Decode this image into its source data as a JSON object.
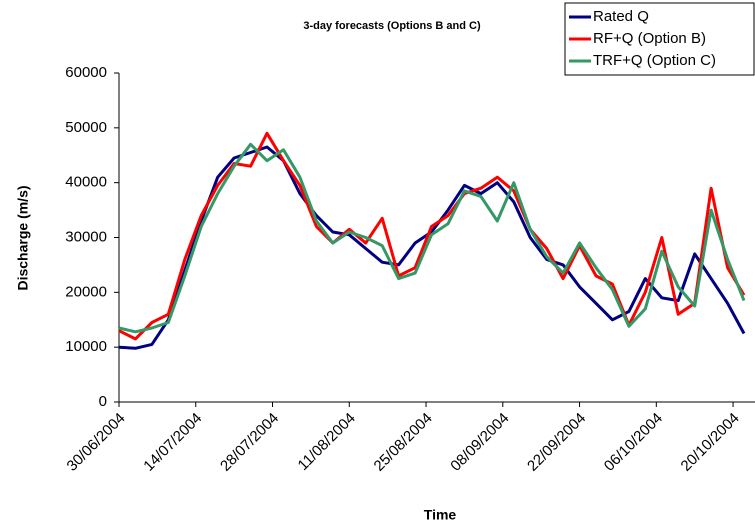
{
  "chart_data": {
    "type": "line",
    "title": "3-day forecasts (Options B and C)",
    "x_label": "Time",
    "y_label": "Discharge (m/s)",
    "x": [
      "30/06/2004",
      "03/07/2004",
      "06/07/2004",
      "09/07/2004",
      "12/07/2004",
      "15/07/2004",
      "18/07/2004",
      "21/07/2004",
      "24/07/2004",
      "27/07/2004",
      "30/07/2004",
      "02/08/2004",
      "05/08/2004",
      "08/08/2004",
      "11/08/2004",
      "14/08/2004",
      "17/08/2004",
      "20/08/2004",
      "23/08/2004",
      "26/08/2004",
      "29/08/2004",
      "01/09/2004",
      "04/09/2004",
      "07/09/2004",
      "10/09/2004",
      "13/09/2004",
      "16/09/2004",
      "19/09/2004",
      "22/09/2004",
      "25/09/2004",
      "28/09/2004",
      "01/10/2004",
      "04/10/2004",
      "07/10/2004",
      "10/10/2004",
      "13/10/2004",
      "16/10/2004",
      "19/10/2004",
      "22/10/2004"
    ],
    "series": [
      {
        "name": "Rated Q",
        "color": "#000080",
        "values": [
          10000,
          9800,
          10500,
          15000,
          24000,
          33000,
          41000,
          44500,
          45500,
          46500,
          44000,
          38000,
          34000,
          31000,
          30500,
          28000,
          25500,
          25000,
          29000,
          31000,
          35000,
          39500,
          38000,
          40000,
          36500,
          30000,
          26000,
          25000,
          21000,
          18000,
          15000,
          16500,
          22500,
          19000,
          18500,
          27000,
          22500,
          18000,
          12500
        ]
      },
      {
        "name": "RF+Q (Option B)",
        "color": "#ff0000",
        "values": [
          13000,
          11500,
          14500,
          16000,
          26000,
          34000,
          39500,
          43500,
          43000,
          49000,
          44000,
          39500,
          32000,
          29000,
          31500,
          29000,
          33500,
          23000,
          24500,
          32000,
          34000,
          38000,
          39000,
          41000,
          38500,
          31500,
          28000,
          22500,
          28500,
          23000,
          21500,
          14000,
          20000,
          30000,
          16000,
          18000,
          39000,
          24500,
          19500
        ]
      },
      {
        "name": "TRF+Q (Option C)",
        "color": "#339966",
        "values": [
          13500,
          12800,
          13500,
          14500,
          23000,
          32000,
          38000,
          43000,
          47000,
          44000,
          46000,
          41000,
          33000,
          29000,
          31000,
          30000,
          28500,
          22500,
          23500,
          30500,
          32500,
          38500,
          37500,
          33000,
          40000,
          31500,
          26500,
          23500,
          29000,
          24500,
          20500,
          13800,
          17000,
          27500,
          21000,
          17500,
          35000,
          26000,
          18500
        ]
      }
    ],
    "xlim": [
      "30/06/2004",
      "24/10/2004"
    ],
    "xticks": [
      "30/06/2004",
      "14/07/2004",
      "28/07/2004",
      "11/08/2004",
      "25/08/2004",
      "08/09/2004",
      "22/09/2004",
      "06/10/2004",
      "20/10/2004"
    ],
    "ylim": [
      0,
      60000
    ],
    "yticks": [
      0,
      10000,
      20000,
      30000,
      40000,
      50000,
      60000
    ],
    "grid": false,
    "legend": "top-right"
  }
}
